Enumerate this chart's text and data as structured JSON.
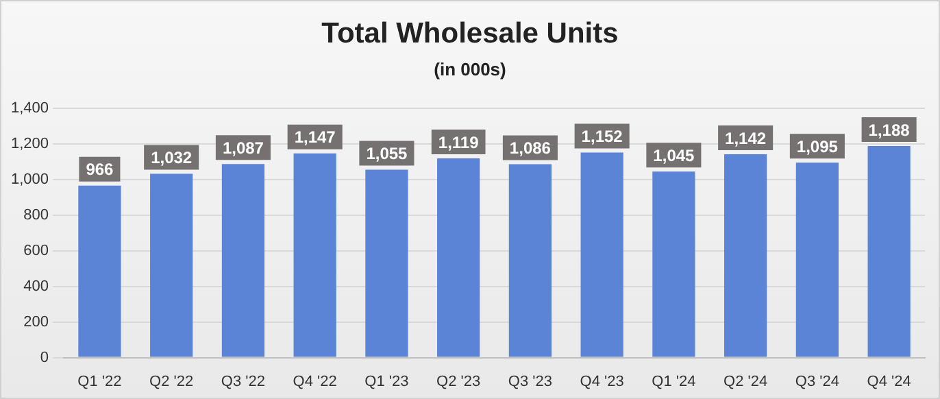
{
  "chart_data": {
    "type": "bar",
    "title": "Total Wholesale Units",
    "subtitle": "(in 000s)",
    "categories": [
      "Q1 '22",
      "Q2 '22",
      "Q3 '22",
      "Q4 '22",
      "Q1 '23",
      "Q2 '23",
      "Q3 '23",
      "Q4 '23",
      "Q1 '24",
      "Q2 '24",
      "Q3 '24",
      "Q4 '24"
    ],
    "values": [
      966,
      1032,
      1087,
      1147,
      1055,
      1119,
      1086,
      1152,
      1045,
      1142,
      1095,
      1188
    ],
    "value_labels": [
      "966",
      "1,032",
      "1,087",
      "1,147",
      "1,055",
      "1,119",
      "1,086",
      "1,152",
      "1,045",
      "1,142",
      "1,095",
      "1,188"
    ],
    "color": "#5b84d6",
    "ylim": [
      0,
      1400
    ],
    "yticks": [
      0,
      200,
      400,
      600,
      800,
      {
        "value": 1000,
        "label": "1,000"
      },
      {
        "value": 1200,
        "label": "1,200"
      },
      {
        "value": 1400,
        "label": "1,400"
      }
    ],
    "grid": "y",
    "legend": false
  }
}
